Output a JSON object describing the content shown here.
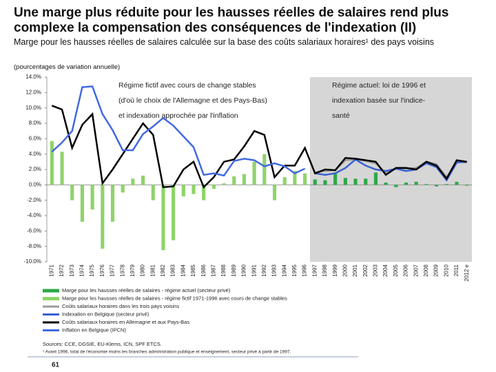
{
  "chart_data": {
    "type": "bar_line",
    "title": "Une marge plus réduite pour les hausses réelles de salaires rend plus complexe la compensation des conséquences de l'indexation (II)",
    "subtitle": "Marge pour les hausses réelles de salaires calculée sur la base des coûts salariaux horaires¹ des pays voisins",
    "unit_note": "(pourcentages de variation annuelle)",
    "annotations": [
      "Régime fictif avec cours de change stables",
      "(d'où le choix de l'Allemagne et des Pays-Bas)",
      "et indexation approchée par l'inflation",
      "Régime actuel: loi de 1996 et",
      "indexation basée sur l'indice-",
      "santé"
    ],
    "categories": [
      "1971",
      "1972",
      "1973",
      "1974",
      "1975",
      "1976",
      "1977",
      "1978",
      "1979",
      "1980",
      "1981",
      "1982",
      "1983",
      "1984",
      "1985",
      "1986",
      "1987",
      "1988",
      "1989",
      "1990",
      "1991",
      "1992",
      "1993",
      "1994",
      "1995",
      "1996",
      "1997",
      "1998",
      "1999",
      "2000",
      "2001",
      "2002",
      "2003",
      "2004",
      "2005",
      "2006",
      "2007",
      "2008",
      "2009",
      "2010",
      "2011",
      "2012 e"
    ],
    "shaded_from": "1997",
    "ylim": [
      -10,
      14
    ],
    "yticks": [
      {
        "value": 14,
        "label": "14.0%"
      },
      {
        "value": 12,
        "label": "12.0%"
      },
      {
        "value": 10,
        "label": "10.0%"
      },
      {
        "value": 8,
        "label": "8.0%"
      },
      {
        "value": 6,
        "label": "6.0%"
      },
      {
        "value": 4,
        "label": "4.0%"
      },
      {
        "value": 2,
        "label": "2.0%"
      },
      {
        "value": 0,
        "label": "0.0%"
      },
      {
        "value": -2,
        "label": "-2.0%"
      },
      {
        "value": -4,
        "label": "-4.0%"
      },
      {
        "value": -6,
        "label": "-6.0%"
      },
      {
        "value": -8,
        "label": "-8.0%"
      },
      {
        "value": -10,
        "label": "-10.0%"
      }
    ],
    "series": [
      {
        "name": "Marge pour les hausses réelles de salaires - régime actuel (secteur privé)",
        "kind": "bar",
        "color": "#2ea84a",
        "values": [
          null,
          null,
          null,
          null,
          null,
          null,
          null,
          null,
          null,
          null,
          null,
          null,
          null,
          null,
          null,
          null,
          null,
          null,
          null,
          null,
          null,
          null,
          null,
          null,
          null,
          null,
          0.7,
          0.6,
          1.6,
          0.9,
          0.8,
          0.8,
          1.6,
          0.3,
          -0.3,
          0.3,
          0.4,
          0.1,
          -0.2,
          0.1,
          0.4,
          -0.1
        ]
      },
      {
        "name": "Marge pour les hausses réelles de salaires - régime fictif 1971-1996 avec cours de change stables",
        "kind": "bar",
        "color": "#8fd36a",
        "values": [
          5.7,
          4.3,
          -2,
          -4.8,
          -3.2,
          -8.3,
          -4.8,
          -1,
          0.8,
          1.2,
          -2,
          -8.5,
          -7.2,
          -1.5,
          -1.2,
          -2,
          -0.5,
          0.2,
          1.1,
          1.4,
          3,
          4,
          -2,
          1,
          1.8,
          1.5,
          null,
          null,
          null,
          null,
          null,
          null,
          null,
          null,
          null,
          null,
          null,
          null,
          null,
          null,
          null,
          null
        ]
      },
      {
        "name": "Coûts salariaux horaires dans les trois pays voisins",
        "kind": "line",
        "color": "#9a9a9a",
        "values": [
          null,
          null,
          null,
          null,
          null,
          null,
          null,
          null,
          null,
          null,
          null,
          null,
          null,
          null,
          null,
          null,
          null,
          null,
          null,
          null,
          null,
          null,
          null,
          null,
          null,
          null,
          1.6,
          1.8,
          1.9,
          3.2,
          3.3,
          3.1,
          2.8,
          1.5,
          2.1,
          2.1,
          2.2,
          3.0,
          2.7,
          1.0,
          3.0,
          2.9
        ]
      },
      {
        "name": "Indexation en Belgique (secteur privé)",
        "kind": "line",
        "color": "#3a5fd0",
        "values": [
          null,
          null,
          null,
          null,
          null,
          null,
          null,
          null,
          null,
          null,
          null,
          null,
          null,
          null,
          null,
          null,
          null,
          null,
          null,
          null,
          null,
          null,
          null,
          null,
          null,
          null,
          1.5,
          1.3,
          1.5,
          2.2,
          3.3,
          2.5,
          2.0,
          1.8,
          2.1,
          1.8,
          2.0,
          2.8,
          2.3,
          0.6,
          2.9,
          3.0
        ]
      },
      {
        "name": "Coûts salariaux horaires en Allemagne et aux Pays-Bas",
        "kind": "line",
        "color": "#000000",
        "values": [
          10.3,
          9.8,
          4.8,
          7.8,
          9.2,
          0.2,
          2,
          4,
          6,
          8,
          6.5,
          -0.3,
          -0.2,
          2,
          3,
          -0.3,
          1,
          3,
          3.3,
          5,
          7,
          6.5,
          1,
          2.5,
          2.5,
          4.8,
          1.5,
          2,
          1.9,
          3.5,
          3.4,
          3.2,
          3,
          1.3,
          2.2,
          2.2,
          2,
          3,
          2.5,
          0.8,
          3.2,
          3.0
        ]
      },
      {
        "name": "Inflation en Belgique (IPCN)",
        "kind": "line",
        "color": "#4169e1",
        "values": [
          4.3,
          5.5,
          7,
          12.7,
          12.8,
          9.2,
          7.1,
          4.5,
          4.5,
          6.6,
          7.6,
          8.7,
          7.7,
          6.3,
          4.9,
          1.3,
          1.5,
          1.2,
          3.1,
          3.4,
          3.2,
          2.4,
          2.8,
          2.4,
          1.5,
          2.1,
          null,
          null,
          null,
          null,
          null,
          null,
          null,
          null,
          null,
          null,
          null,
          null,
          null,
          null,
          null,
          null
        ]
      }
    ],
    "sources": "Sources: CCE, DGSIE, EU-Klems, ICN, SPF ETCS.",
    "footnote": "¹ Avant 1996, total de l'économie moins les branches administration publique et enseignement, secteur privé à partir de 1997.",
    "page_number": "61"
  }
}
